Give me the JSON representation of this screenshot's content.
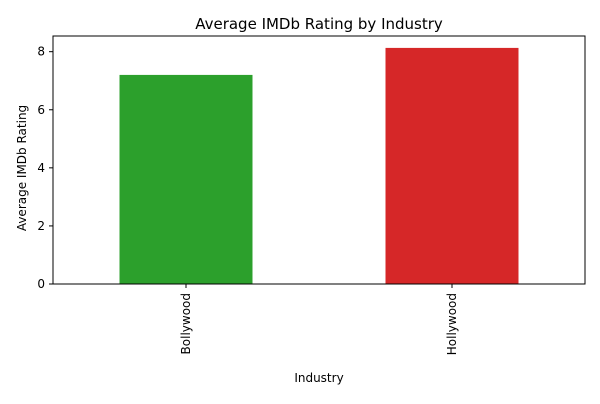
{
  "chart_data": {
    "type": "bar",
    "title": "Average IMDb Rating by Industry",
    "xlabel": "Industry",
    "ylabel": "Average IMDb Rating",
    "categories": [
      "Bollywood",
      "Hollywood"
    ],
    "values": [
      7.2,
      8.13
    ],
    "colors": [
      "#2ca02c",
      "#d62728"
    ],
    "ylim": [
      0,
      8.54
    ],
    "yticks": [
      "0",
      "2",
      "4",
      "6",
      "8"
    ],
    "ytick_values": [
      0,
      2,
      4,
      6,
      8
    ],
    "xtick_rotation": "vertical",
    "grid": false,
    "legend": "none"
  }
}
